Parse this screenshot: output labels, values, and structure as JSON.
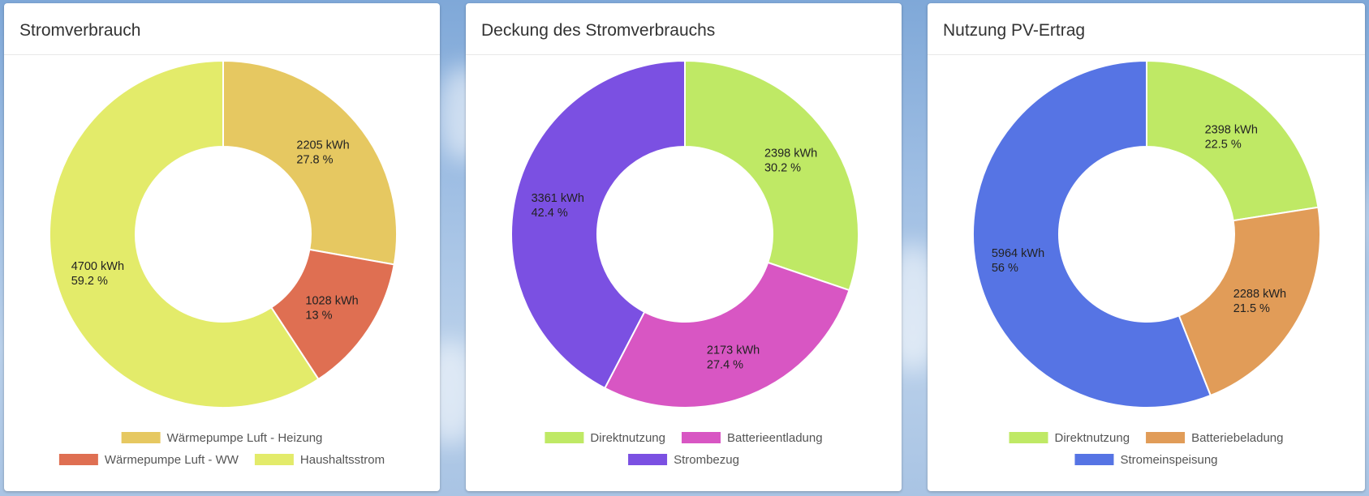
{
  "colors": {
    "waermepumpe_heizung": "#e6c861",
    "waermepumpe_ww": "#df6f52",
    "haushalt": "#e3eb6a",
    "direktnutzung": "#bfe965",
    "batterieentladung": "#d856c3",
    "strombezug": "#7b50e2",
    "batteriebeladung": "#e19c58",
    "stromeinspeisung": "#5674e4"
  },
  "chart_data": [
    {
      "type": "pie",
      "title": "Stromverbrauch",
      "series": [
        {
          "name": "Wärmepumpe Luft - Heizung",
          "value": 2205,
          "label_value": "2205 kWh",
          "label_pct": "27.8 %",
          "color": "#e6c861"
        },
        {
          "name": "Wärmepumpe Luft - WW",
          "value": 1028,
          "label_value": "1028 kWh",
          "label_pct": "13 %",
          "color": "#df6f52"
        },
        {
          "name": "Haushaltsstrom",
          "value": 4700,
          "label_value": "4700 kWh",
          "label_pct": "59.2 %",
          "color": "#e3eb6a"
        }
      ],
      "legend_position": "bottom"
    },
    {
      "type": "pie",
      "title": "Deckung des Stromverbrauchs",
      "series": [
        {
          "name": "Direktnutzung",
          "value": 2398,
          "label_value": "2398 kWh",
          "label_pct": "30.2 %",
          "color": "#bfe965"
        },
        {
          "name": "Batterieentladung",
          "value": 2173,
          "label_value": "2173 kWh",
          "label_pct": "27.4 %",
          "color": "#d856c3"
        },
        {
          "name": "Strombezug",
          "value": 3361,
          "label_value": "3361 kWh",
          "label_pct": "42.4 %",
          "color": "#7b50e2"
        }
      ],
      "legend_position": "bottom"
    },
    {
      "type": "pie",
      "title": "Nutzung PV-Ertrag",
      "series": [
        {
          "name": "Direktnutzung",
          "value": 2398,
          "label_value": "2398 kWh",
          "label_pct": "22.5 %",
          "color": "#bfe965"
        },
        {
          "name": "Batteriebeladung",
          "value": 2288,
          "label_value": "2288 kWh",
          "label_pct": "21.5 %",
          "color": "#e19c58"
        },
        {
          "name": "Stromeinspeisung",
          "value": 5964,
          "label_value": "5964 kWh",
          "label_pct": "56 %",
          "color": "#5674e4"
        }
      ],
      "legend_position": "bottom"
    }
  ]
}
